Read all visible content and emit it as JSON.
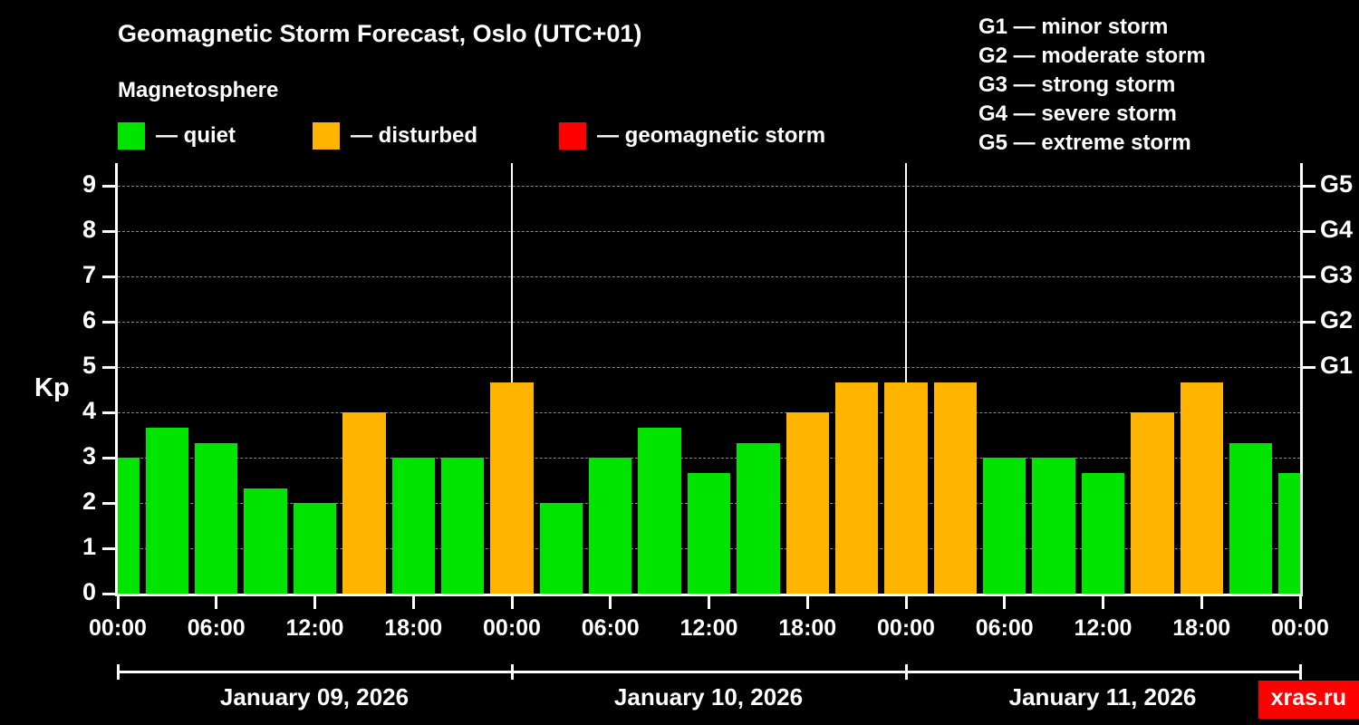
{
  "title": "Geomagnetic Storm Forecast, Oslo (UTC+01)",
  "subtitle": "Magnetosphere",
  "legend": {
    "quiet": {
      "label": "— quiet",
      "color": "#00e400"
    },
    "disturbed": {
      "label": "— disturbed",
      "color": "#ffb400"
    },
    "storm": {
      "label": "— geomagnetic storm",
      "color": "#ff0000"
    }
  },
  "g_legend": [
    "G1 — minor storm",
    "G2 — moderate storm",
    "G3 — strong storm",
    "G4 — severe storm",
    "G5 — extreme storm"
  ],
  "watermark": "xras.ru",
  "chart_data": {
    "type": "bar",
    "title": "Geomagnetic Storm Forecast, Oslo (UTC+01)",
    "ylabel": "Kp",
    "ylim": [
      0,
      9.5
    ],
    "yticks": [
      0,
      1,
      2,
      3,
      4,
      5,
      6,
      7,
      8,
      9
    ],
    "right_axis_ticks": [
      {
        "value": 5,
        "label": "G1"
      },
      {
        "value": 6,
        "label": "G2"
      },
      {
        "value": 7,
        "label": "G3"
      },
      {
        "value": 8,
        "label": "G4"
      },
      {
        "value": 9,
        "label": "G5"
      }
    ],
    "hours_total": 72,
    "sample_interval_hours": 3,
    "xtick_hours": [
      0,
      6,
      12,
      18,
      24,
      30,
      36,
      42,
      48,
      54,
      60,
      66,
      72
    ],
    "xtick_labels": [
      "00:00",
      "06:00",
      "12:00",
      "18:00",
      "00:00",
      "06:00",
      "12:00",
      "18:00",
      "00:00",
      "06:00",
      "12:00",
      "18:00",
      "00:00"
    ],
    "days": [
      "January 09, 2026",
      "January 10, 2026",
      "January 11, 2026"
    ],
    "values": [
      3,
      3.67,
      3.33,
      2.33,
      2,
      4,
      3,
      3,
      4.67,
      2,
      3,
      3.67,
      2.67,
      3.33,
      4,
      4.67,
      4.67,
      4.67,
      3,
      3,
      2.67,
      4,
      4.67,
      3.33,
      2.67
    ],
    "thresholds": {
      "disturbed_min": 4,
      "storm_min": 5
    },
    "grid": "dashed horizontal at integer Kp levels",
    "legend_position": "top"
  }
}
